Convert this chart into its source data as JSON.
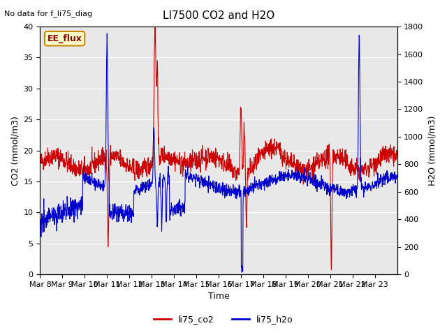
{
  "title": "LI7500 CO2 and H2O",
  "top_left_text": "No data for f_li75_diag",
  "box_label": "EE_flux",
  "xlabel": "Time",
  "ylabel_left": "CO2 (mmol/m3)",
  "ylabel_right": "H2O (mmol/m3)",
  "ylim_left": [
    0,
    40
  ],
  "ylim_right": [
    0,
    1800
  ],
  "yticks_left": [
    0,
    5,
    10,
    15,
    20,
    25,
    30,
    35,
    40
  ],
  "yticks_right": [
    0,
    200,
    400,
    600,
    800,
    1000,
    1200,
    1400,
    1600,
    1800
  ],
  "xtick_labels": [
    "Mar 8",
    "Mar 9",
    "Mar 10",
    "Mar 11",
    "Mar 12",
    "Mar 13",
    "Mar 14",
    "Mar 15",
    "Mar 16",
    "Mar 17",
    "Mar 18",
    "Mar 19",
    "Mar 20",
    "Mar 21",
    "Mar 22",
    "Mar 23"
  ],
  "co2_color": "#cc0000",
  "h2o_color": "#0000cc",
  "background_color": "#e8e8e8",
  "legend_entries": [
    "li75_co2",
    "li75_h2o"
  ],
  "legend_colors": [
    "#cc0000",
    "#0000cc"
  ],
  "n_points": 1440,
  "seed": 42
}
